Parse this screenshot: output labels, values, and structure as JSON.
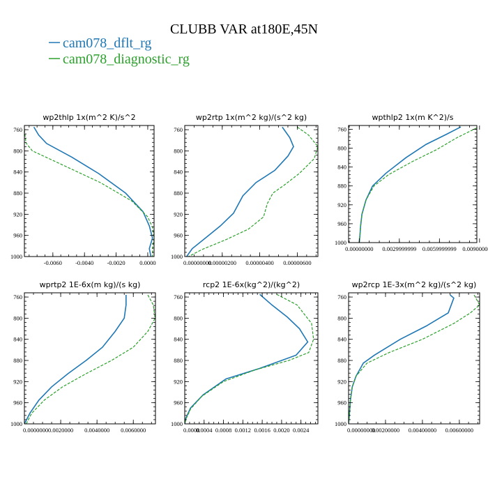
{
  "figure": {
    "title": "CLUBB VAR at180E,45N",
    "legend": [
      {
        "label": "cam078_dflt_rg",
        "color": "#1f77b4",
        "dash": "solid"
      },
      {
        "label": "cam078_diagnostic_rg",
        "color": "#2ca02c",
        "dash": "dashed"
      }
    ]
  },
  "chart_data": [
    {
      "type": "line",
      "title": "wp2thlp  1x(m^2 K)/s^2",
      "xlim": [
        -0.0078,
        0.0004
      ],
      "ylim": [
        1000,
        752
      ],
      "xticks": [
        -0.006,
        -0.004,
        -0.002,
        0.0
      ],
      "xtick_labels": [
        "-0.0060",
        "-0.0040",
        "-0.0020",
        "0.0000"
      ],
      "yticks": [
        760,
        800,
        840,
        880,
        920,
        960,
        1000
      ],
      "ytick_labels": [
        "760",
        "800",
        "840",
        "880",
        "920",
        "960",
        "1000"
      ],
      "series": [
        {
          "name": "cam078_dflt_rg",
          "points": [
            [
              -0.0072,
              755
            ],
            [
              -0.0069,
              770
            ],
            [
              -0.0064,
              786
            ],
            [
              -0.0048,
              812
            ],
            [
              -0.0031,
              843
            ],
            [
              -0.0014,
              880
            ],
            [
              -0.0003,
              915
            ],
            [
              0.0001,
              942
            ],
            [
              0.0003,
              965
            ],
            [
              0.0001,
              985
            ],
            [
              0.0002,
              1000
            ]
          ]
        },
        {
          "name": "cam078_diagnostic_rg",
          "points": [
            [
              -0.0078,
              760
            ],
            [
              -0.0077,
              785
            ],
            [
              -0.0073,
              800
            ],
            [
              -0.005,
              832
            ],
            [
              -0.003,
              860
            ],
            [
              -0.001,
              895
            ],
            [
              0.0,
              925
            ],
            [
              0.0003,
              945
            ],
            [
              0.0004,
              965
            ],
            [
              0.0003,
              985
            ],
            [
              0.0003,
              1000
            ]
          ]
        }
      ]
    },
    {
      "type": "line",
      "title": "wp2rtp  1x(m^2 kg)/(s^2 kg)",
      "xlim": [
        0.0,
        7.1e-06
      ],
      "ylim": [
        1000,
        752
      ],
      "xticks": [
        0.0,
        2e-06,
        4e-06,
        6e-06
      ],
      "xtick_labels": [
        "0.00000000",
        "0.00000200",
        "0.00000400",
        "0.00000600"
      ],
      "yticks": [
        760,
        800,
        840,
        880,
        920,
        960,
        1000
      ],
      "ytick_labels": [
        "760",
        "800",
        "840",
        "880",
        "920",
        "960",
        "1000"
      ],
      "series": [
        {
          "name": "cam078_dflt_rg",
          "points": [
            [
              5.2e-06,
              755
            ],
            [
              5.6e-06,
              775
            ],
            [
              5.8e-06,
              792
            ],
            [
              5.5e-06,
              810
            ],
            [
              4.8e-06,
              837
            ],
            [
              3.8e-06,
              860
            ],
            [
              3.1e-06,
              885
            ],
            [
              2.6e-06,
              918
            ],
            [
              1.9e-06,
              942
            ],
            [
              1.1e-06,
              965
            ],
            [
              4e-07,
              985
            ],
            [
              1e-07,
              1000
            ]
          ]
        },
        {
          "name": "cam078_diagnostic_rg",
          "points": [
            [
              6e-06,
              755
            ],
            [
              6.6e-06,
              770
            ],
            [
              7.1e-06,
              792
            ],
            [
              6.9e-06,
              815
            ],
            [
              6.1e-06,
              843
            ],
            [
              5.3e-06,
              865
            ],
            [
              4.7e-06,
              880
            ],
            [
              4.4e-06,
              900
            ],
            [
              4.2e-06,
              925
            ],
            [
              3.4e-06,
              948
            ],
            [
              2.2e-06,
              968
            ],
            [
              9e-07,
              987
            ],
            [
              2e-07,
              1000
            ]
          ]
        }
      ]
    },
    {
      "type": "line",
      "title": "wpthlp2  1x(m K^2)/s",
      "xlim": [
        -0.8,
        8.8
      ],
      "ylim": [
        1000,
        752
      ],
      "xticks": [
        0,
        3,
        6,
        9
      ],
      "xtick_labels": [
        "0.00000000",
        "0.0029999999",
        "0.0059999999",
        "0.0090000000"
      ],
      "yticks": [
        760,
        800,
        840,
        880,
        920,
        960,
        1000
      ],
      "ytick_labels": [
        "760",
        "800",
        "840",
        "880",
        "920",
        "960",
        "1000"
      ],
      "series": [
        {
          "name": "cam078_dflt_rg",
          "points": [
            [
              7.6,
              755
            ],
            [
              6.5,
              771
            ],
            [
              5.0,
              792
            ],
            [
              3.5,
              820
            ],
            [
              2.0,
              853
            ],
            [
              1.0,
              880
            ],
            [
              0.5,
              910
            ],
            [
              0.2,
              940
            ],
            [
              0.1,
              965
            ],
            [
              0.05,
              985
            ],
            [
              0.0,
              1000
            ]
          ]
        },
        {
          "name": "cam078_diagnostic_rg",
          "points": [
            [
              8.8,
              757
            ],
            [
              7.3,
              778
            ],
            [
              5.8,
              803
            ],
            [
              4.0,
              828
            ],
            [
              2.2,
              856
            ],
            [
              1.1,
              880
            ],
            [
              0.5,
              910
            ],
            [
              0.2,
              940
            ],
            [
              0.1,
              965
            ],
            [
              0.05,
              985
            ],
            [
              0.0,
              1000
            ]
          ]
        }
      ]
    },
    {
      "type": "line",
      "title": "wprtp2  1E-6x(m kg)/(s kg)",
      "xlim": [
        0.0,
        0.00722
      ],
      "ylim": [
        1000,
        752
      ],
      "xticks": [
        0.0,
        0.002,
        0.004,
        0.006
      ],
      "xtick_labels": [
        "0.0000000",
        "0.0020000",
        "0.0040000",
        "0.0060000"
      ],
      "yticks": [
        760,
        800,
        840,
        880,
        920,
        960,
        1000
      ],
      "ytick_labels": [
        "760",
        "800",
        "840",
        "880",
        "920",
        "960",
        "1000"
      ],
      "series": [
        {
          "name": "cam078_dflt_rg",
          "points": [
            [
              0.0056,
              756
            ],
            [
              0.0056,
              775
            ],
            [
              0.0055,
              800
            ],
            [
              0.005,
              825
            ],
            [
              0.0043,
              855
            ],
            [
              0.0034,
              880
            ],
            [
              0.0024,
              905
            ],
            [
              0.0015,
              930
            ],
            [
              0.0008,
              955
            ],
            [
              0.0003,
              980
            ],
            [
              0.0,
              1000
            ]
          ]
        },
        {
          "name": "cam078_diagnostic_rg",
          "points": [
            [
              0.0068,
              756
            ],
            [
              0.0071,
              775
            ],
            [
              0.0072,
              800
            ],
            [
              0.0068,
              825
            ],
            [
              0.006,
              855
            ],
            [
              0.0048,
              880
            ],
            [
              0.0034,
              905
            ],
            [
              0.0021,
              930
            ],
            [
              0.0011,
              955
            ],
            [
              0.0004,
              980
            ],
            [
              0.0001,
              1000
            ]
          ]
        }
      ]
    },
    {
      "type": "line",
      "title": "rcp2  1E-6x(kg^2)/(kg^2)",
      "xlim": [
        0.0,
        0.00275
      ],
      "ylim": [
        1000,
        752
      ],
      "xticks": [
        0.0,
        0.0004,
        0.0008,
        0.0012,
        0.0016,
        0.002,
        0.0024
      ],
      "xtick_labels": [
        "0.0000",
        "0.0004",
        "0.0008",
        "0.0012",
        "0.0016",
        "0.0020",
        "0.0024"
      ],
      "yticks": [
        760,
        800,
        840,
        880,
        920,
        960,
        1000
      ],
      "ytick_labels": [
        "760",
        "800",
        "840",
        "880",
        "920",
        "960",
        "1000"
      ],
      "series": [
        {
          "name": "cam078_dflt_rg",
          "points": [
            [
              0.00155,
              755
            ],
            [
              0.0018,
              775
            ],
            [
              0.00212,
              798
            ],
            [
              0.00237,
              820
            ],
            [
              0.00254,
              845
            ],
            [
              0.0023,
              870
            ],
            [
              0.00155,
              895
            ],
            [
              0.00085,
              915
            ],
            [
              0.00038,
              945
            ],
            [
              0.00012,
              970
            ],
            [
              2e-05,
              990
            ],
            [
              0.0,
              1000
            ]
          ]
        },
        {
          "name": "cam078_diagnostic_rg",
          "points": [
            [
              0.0019,
              755
            ],
            [
              0.00232,
              775
            ],
            [
              0.00262,
              810
            ],
            [
              0.00266,
              840
            ],
            [
              0.00256,
              865
            ],
            [
              0.00215,
              880
            ],
            [
              0.00145,
              898
            ],
            [
              0.0008,
              920
            ],
            [
              0.00035,
              948
            ],
            [
              0.00012,
              972
            ],
            [
              3e-05,
              990
            ],
            [
              0.0,
              1000
            ]
          ]
        }
      ]
    },
    {
      "type": "line",
      "title": "wp2rcp  1E-3x(m^2 kg)/(s^2 kg)",
      "xlim": [
        0.0,
        0.0071
      ],
      "ylim": [
        1000,
        752
      ],
      "xticks": [
        0.0,
        0.002,
        0.004,
        0.006
      ],
      "xtick_labels": [
        "0.00000000",
        "0.00200000",
        "0.00400000",
        "0.00600000"
      ],
      "yticks": [
        760,
        800,
        840,
        880,
        920,
        960,
        1000
      ],
      "ytick_labels": [
        "760",
        "800",
        "840",
        "880",
        "920",
        "960",
        "1000"
      ],
      "series": [
        {
          "name": "cam078_dflt_rg",
          "points": [
            [
              0.0055,
              756
            ],
            [
              0.0057,
              762
            ],
            [
              0.0054,
              790
            ],
            [
              0.0042,
              815
            ],
            [
              0.0028,
              840
            ],
            [
              0.0014,
              870
            ],
            [
              0.0008,
              885
            ],
            [
              0.0004,
              910
            ],
            [
              0.0002,
              930
            ],
            [
              0.0001,
              955
            ],
            [
              5e-05,
              980
            ],
            [
              0.0,
              1000
            ]
          ]
        },
        {
          "name": "cam078_diagnostic_rg",
          "points": [
            [
              0.0068,
              756
            ],
            [
              0.0071,
              775
            ],
            [
              0.0066,
              790
            ],
            [
              0.0057,
              810
            ],
            [
              0.004,
              840
            ],
            [
              0.0022,
              865
            ],
            [
              0.001,
              885
            ],
            [
              0.0004,
              910
            ],
            [
              0.0002,
              930
            ],
            [
              0.0001,
              955
            ],
            [
              5e-05,
              980
            ],
            [
              0.0,
              1000
            ]
          ]
        }
      ]
    }
  ]
}
